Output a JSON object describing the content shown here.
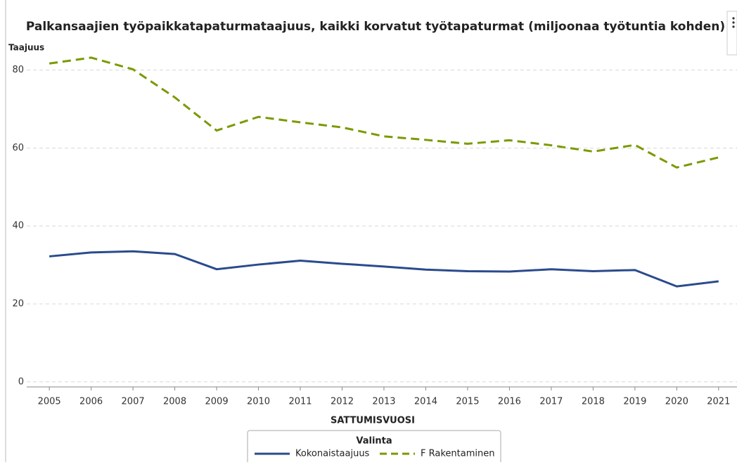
{
  "chart_data": {
    "type": "line",
    "title": "Palkansaajien työpaikkatapaturmataajuus, kaikki korvatut työtapaturmat (miljoonaa työtuntia kohden)",
    "y_label": "Taajuus",
    "x_label": "SATTUMISVUOSI",
    "legend_title": "Valinta",
    "x": [
      2005,
      2006,
      2007,
      2008,
      2009,
      2010,
      2011,
      2012,
      2013,
      2014,
      2015,
      2016,
      2017,
      2018,
      2019,
      2020,
      2021
    ],
    "series": [
      {
        "name": "Kokonaistaajuus",
        "color": "#2a4b8d",
        "dash": false,
        "values": [
          32.2,
          33.2,
          33.5,
          32.8,
          28.9,
          30.1,
          31.1,
          30.3,
          29.6,
          28.8,
          28.4,
          28.3,
          28.9,
          28.4,
          28.7,
          24.5,
          25.8
        ]
      },
      {
        "name": "F Rakentaminen",
        "color": "#7a9a01",
        "dash": true,
        "values": [
          81.7,
          83.2,
          80.2,
          73,
          64.5,
          68,
          66.6,
          65.3,
          63,
          62.1,
          61.1,
          62,
          60.7,
          59.1,
          60.8,
          55,
          57.6
        ]
      }
    ],
    "xlim": [
      2004.46,
      2021.44
    ],
    "xticks": [
      2005,
      2006,
      2007,
      2008,
      2009,
      2010,
      2011,
      2012,
      2013,
      2014,
      2015,
      2016,
      2017,
      2018,
      2019,
      2020,
      2021
    ],
    "ylim": [
      -1.3,
      86.8
    ],
    "yticks": [
      0,
      20,
      40,
      60,
      80
    ],
    "grid": true
  }
}
